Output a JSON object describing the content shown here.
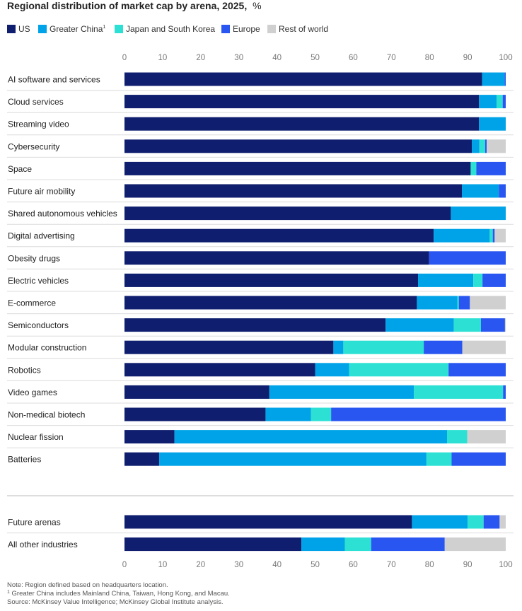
{
  "chart_data": {
    "type": "bar",
    "orientation": "horizontal",
    "stacked": true,
    "title": "Regional distribution of market cap by arena, 2025,",
    "title_unit": "%",
    "xlim": [
      0,
      100
    ],
    "x_ticks": [
      "0",
      "10",
      "20",
      "30",
      "40",
      "50",
      "60",
      "70",
      "80",
      "90",
      "100"
    ],
    "series": [
      {
        "name": "US",
        "footnote": "",
        "color": "#0f1e6e"
      },
      {
        "name": "Greater China",
        "footnote": "1",
        "color": "#00a3e8"
      },
      {
        "name": "Japan and South Korea",
        "footnote": "",
        "color": "#2ce0d3"
      },
      {
        "name": "Europe",
        "footnote": "",
        "color": "#2956f0"
      },
      {
        "name": "Rest of world",
        "footnote": "",
        "color": "#d0d0d0"
      }
    ],
    "groups": [
      {
        "rows": [
          {
            "label": "AI software and services",
            "values": [
              93.8,
              5.9,
              0,
              0.3,
              0
            ]
          },
          {
            "label": "Cloud services",
            "values": [
              93.0,
              4.6,
              1.6,
              0.8,
              0
            ]
          },
          {
            "label": "Streaming video",
            "values": [
              93.0,
              7.0,
              0,
              0,
              0
            ]
          },
          {
            "label": "Cybersecurity",
            "values": [
              91.1,
              2.0,
              1.5,
              0.4,
              5.0
            ]
          },
          {
            "label": "Space",
            "values": [
              90.8,
              0,
              1.5,
              7.7,
              0
            ]
          },
          {
            "label": "Future air mobility",
            "values": [
              88.5,
              9.7,
              0,
              1.8,
              0
            ]
          },
          {
            "label": "Shared autonomous vehicles",
            "values": [
              85.6,
              14.4,
              0,
              0,
              0
            ]
          },
          {
            "label": "Digital advertising",
            "values": [
              81.1,
              14.7,
              0.8,
              0.5,
              2.9
            ]
          },
          {
            "label": "Obesity drugs",
            "values": [
              79.9,
              0,
              0,
              20.1,
              0
            ]
          },
          {
            "label": "Electric vehicles",
            "values": [
              77.0,
              14.5,
              2.4,
              6.1,
              0
            ]
          },
          {
            "label": "E-commerce",
            "values": [
              76.7,
              10.6,
              0.4,
              2.9,
              9.4
            ]
          },
          {
            "label": "Semiconductors",
            "values": [
              68.5,
              17.9,
              7.1,
              6.3,
              0.2
            ]
          },
          {
            "label": "Modular construction",
            "values": [
              54.8,
              2.6,
              21.1,
              10.1,
              11.4
            ]
          },
          {
            "label": "Robotics",
            "values": [
              50.0,
              8.9,
              26.1,
              15.0,
              0
            ]
          },
          {
            "label": "Video games",
            "values": [
              38.0,
              37.9,
              23.4,
              0.7,
              0
            ]
          },
          {
            "label": "Non-medical biotech",
            "values": [
              37.0,
              11.9,
              5.3,
              45.8,
              0
            ]
          },
          {
            "label": "Nuclear fission",
            "values": [
              13.1,
              71.5,
              5.3,
              0,
              10.1
            ]
          },
          {
            "label": "Batteries",
            "values": [
              9.1,
              70.1,
              6.6,
              14.2,
              0
            ]
          }
        ]
      },
      {
        "rows": [
          {
            "label": "Future arenas",
            "values": [
              75.4,
              14.6,
              4.2,
              4.2,
              1.6
            ]
          },
          {
            "label": "All other industries",
            "values": [
              46.4,
              11.4,
              6.9,
              19.3,
              16.0
            ]
          }
        ]
      }
    ],
    "notes": {
      "line1": "Note: Region defined based on headquarters location.",
      "line2_sup": "1",
      "line2": "Greater China includes Mainland China, Taiwan, Hong Kong, and Macau.",
      "line3": "Source: McKinsey Value Intelligence; McKinsey Global Institute analysis."
    }
  }
}
